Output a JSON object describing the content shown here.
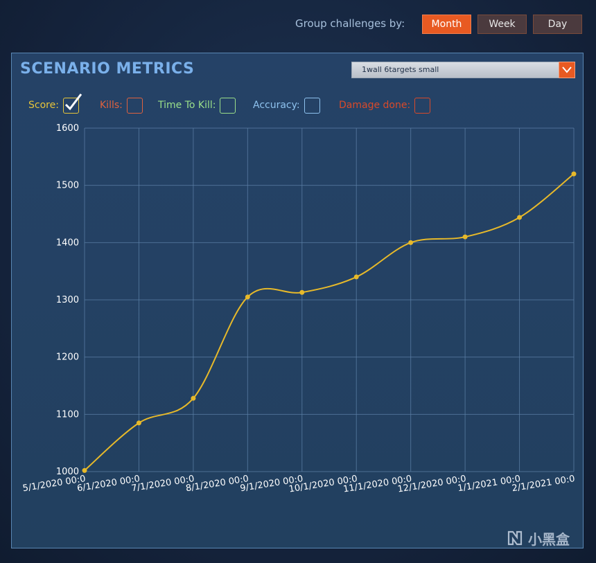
{
  "header": {
    "group_label": "Group challenges by:",
    "buttons": [
      {
        "label": "Month",
        "active": true
      },
      {
        "label": "Week",
        "active": false
      },
      {
        "label": "Day",
        "active": false
      }
    ]
  },
  "panel": {
    "title": "SCENARIO METRICS",
    "scenario_selected": "1wall 6targets small",
    "metrics": [
      {
        "label": "Score:",
        "color": "#e7c53a",
        "checked": true
      },
      {
        "label": "Kills:",
        "color": "#e0623e",
        "checked": false
      },
      {
        "label": "Time To Kill:",
        "color": "#9be08a",
        "checked": false
      },
      {
        "label": "Accuracy:",
        "color": "#8ec2ee",
        "checked": false
      },
      {
        "label": "Damage done:",
        "color": "#d94a2a",
        "checked": false
      }
    ]
  },
  "watermark": {
    "text": "小黑盒"
  },
  "colors": {
    "accent": "#e85a22",
    "series": "#e7b92a",
    "grid": "#5b7fa6",
    "title": "#7ab0ea"
  },
  "chart_data": {
    "type": "line",
    "title": "",
    "xlabel": "",
    "ylabel": "",
    "ylim": [
      1000,
      1600
    ],
    "yticks": [
      1000,
      1100,
      1200,
      1300,
      1400,
      1500,
      1600
    ],
    "categories": [
      "5/1/2020 00:0",
      "6/1/2020 00:0",
      "7/1/2020 00:0",
      "8/1/2020 00:0",
      "9/1/2020 00:0",
      "10/1/2020 00:0",
      "11/1/2020 00:0",
      "12/1/2020 00:0",
      "1/1/2021 00:0",
      "2/1/2021 00:0"
    ],
    "series": [
      {
        "name": "Score",
        "values": [
          1002,
          1085,
          1128,
          1305,
          1313,
          1340,
          1400,
          1410,
          1444,
          1520
        ]
      }
    ],
    "grid": true,
    "legend": "none"
  }
}
